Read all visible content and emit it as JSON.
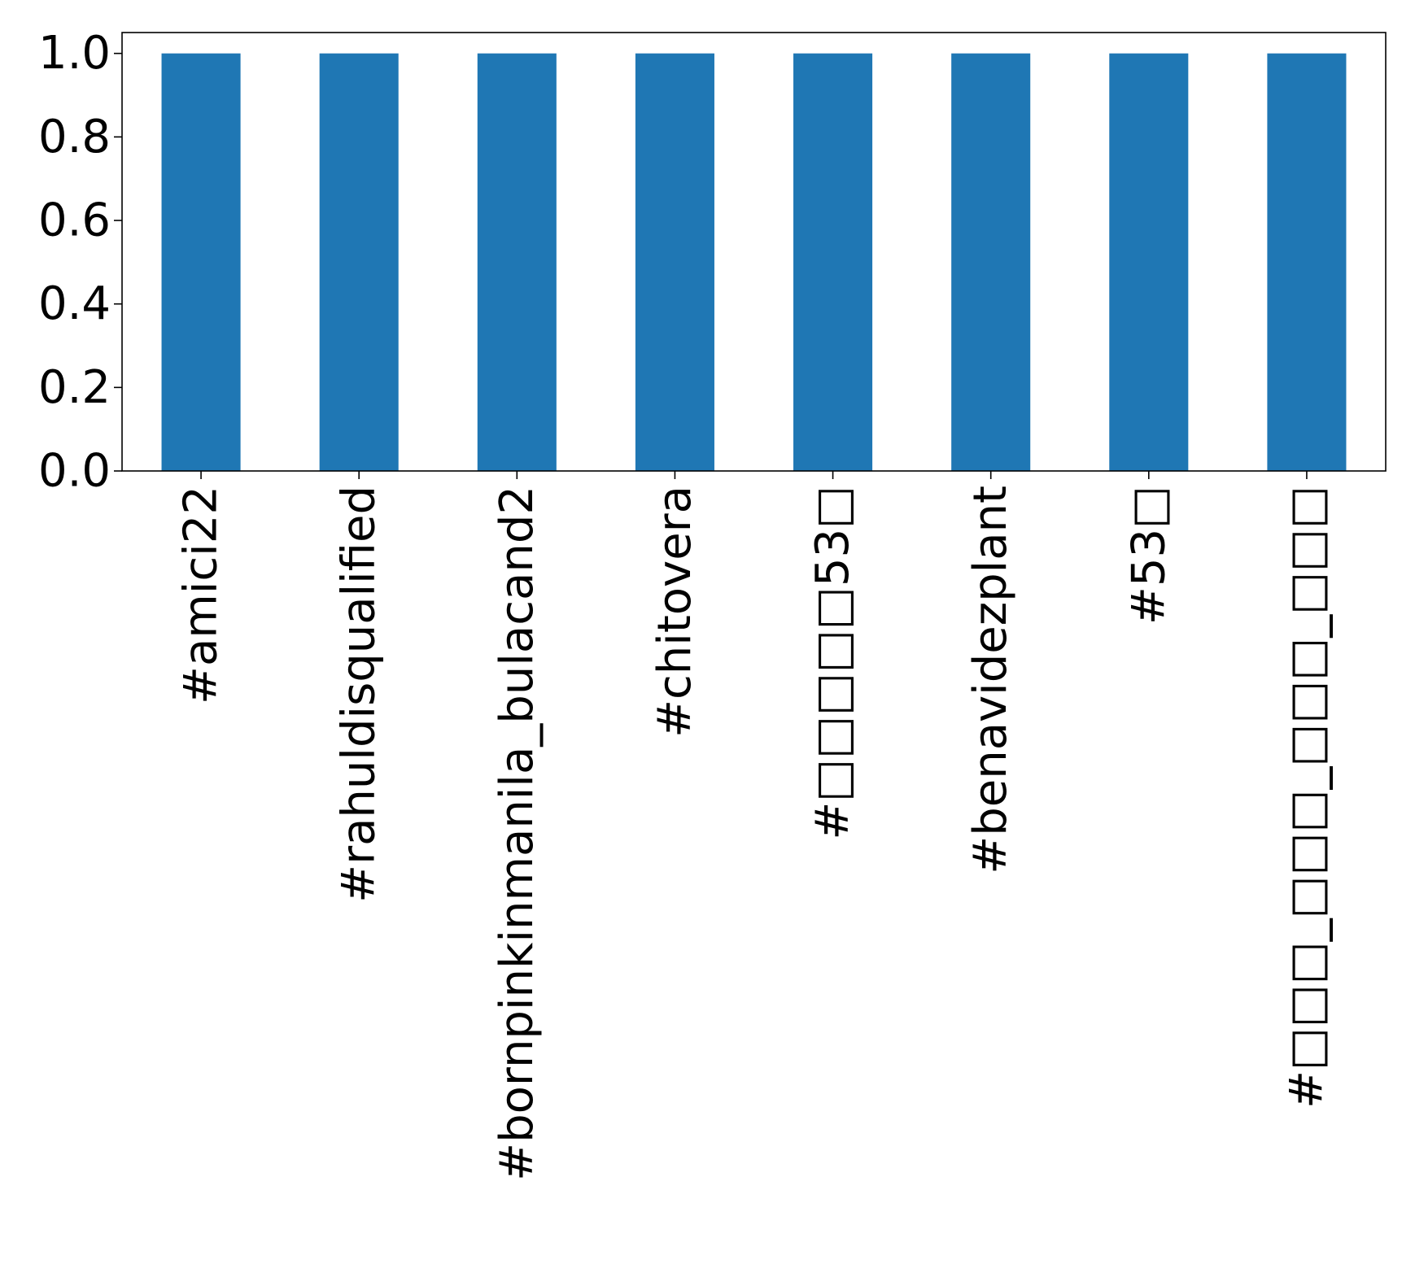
{
  "chart_data": {
    "type": "bar",
    "categories": [
      "#amici22",
      "#rahuldisqualified",
      "#bornpinkinmanila_bulacand2",
      "#chitovera",
      "#□□□□□53□",
      "#benavidezplant",
      "#53□",
      "#□□□_□□□_□□□_□□□"
    ],
    "values": [
      1,
      1,
      1,
      1,
      1,
      1,
      1,
      1
    ],
    "ylim": [
      0,
      1.05
    ],
    "yticks": [
      {
        "value": 0.0,
        "label": "0.0"
      },
      {
        "value": 0.2,
        "label": "0.2"
      },
      {
        "value": 0.4,
        "label": "0.4"
      },
      {
        "value": 0.6,
        "label": "0.6"
      },
      {
        "value": 0.8,
        "label": "0.8"
      },
      {
        "value": 1.0,
        "label": "1.0"
      }
    ],
    "title": "",
    "xlabel": "",
    "ylabel": "",
    "bar_color": "#1f77b4",
    "grid": false,
    "legend": "none"
  }
}
